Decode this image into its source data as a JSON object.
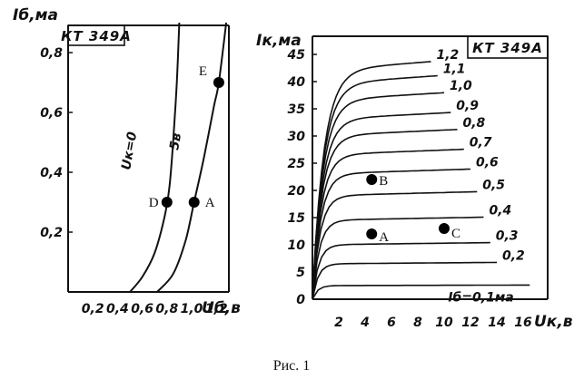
{
  "caption": "Рис. 1",
  "chart_data": [
    {
      "type": "line",
      "name": "input-characteristics",
      "title": "КТ 349А",
      "xlabel": "Uб,в",
      "ylabel": "Iб,ма",
      "xlim": [
        0,
        1.3
      ],
      "ylim": [
        0,
        0.95
      ],
      "x_ticks": [
        "0,2",
        "0,4",
        "0,6",
        "0,8",
        "1,0",
        "1,2"
      ],
      "x_tick_values": [
        0.2,
        0.4,
        0.6,
        0.8,
        1.0,
        1.2
      ],
      "y_ticks": [
        "0,2",
        "0,4",
        "0,6",
        "0,8"
      ],
      "y_tick_values": [
        0.2,
        0.4,
        0.6,
        0.8
      ],
      "series": [
        {
          "name": "Uк=0",
          "points": [
            [
              0.5,
              0
            ],
            [
              0.6,
              0.05
            ],
            [
              0.7,
              0.13
            ],
            [
              0.78,
              0.25
            ],
            [
              0.82,
              0.35
            ],
            [
              0.85,
              0.5
            ],
            [
              0.88,
              0.7
            ],
            [
              0.9,
              0.9
            ]
          ]
        },
        {
          "name": "5в",
          "points": [
            [
              0.72,
              0
            ],
            [
              0.85,
              0.06
            ],
            [
              0.95,
              0.17
            ],
            [
              1.02,
              0.3
            ],
            [
              1.1,
              0.45
            ],
            [
              1.18,
              0.62
            ],
            [
              1.22,
              0.7
            ],
            [
              1.28,
              0.9
            ]
          ]
        }
      ],
      "points": [
        {
          "label": "D",
          "x": 0.8,
          "y": 0.3
        },
        {
          "label": "A",
          "x": 1.02,
          "y": 0.3
        },
        {
          "label": "E",
          "x": 1.22,
          "y": 0.7
        }
      ]
    },
    {
      "type": "line",
      "name": "output-characteristics",
      "title": "КТ 349А",
      "xlabel": "Uк,в",
      "ylabel": "Iк,ма",
      "xlim": [
        0,
        18
      ],
      "ylim": [
        0,
        46
      ],
      "x_ticks": [
        "2",
        "4",
        "6",
        "8",
        "10",
        "12",
        "14",
        "16"
      ],
      "x_tick_values": [
        2,
        4,
        6,
        8,
        10,
        12,
        14,
        16
      ],
      "y_ticks": [
        "0",
        "5",
        "10",
        "15",
        "20",
        "25",
        "30",
        "35",
        "40",
        "45"
      ],
      "y_tick_values": [
        0,
        5,
        10,
        15,
        20,
        25,
        30,
        35,
        40,
        45
      ],
      "series": [
        {
          "name": "Iб=0,1ма",
          "ib": 0.1,
          "plateau": 2.5,
          "end": 16.5,
          "text": "Iб=0,1ма"
        },
        {
          "name": "0,2",
          "ib": 0.2,
          "plateau": 6.5,
          "end": 14,
          "text": "0,2"
        },
        {
          "name": "0,3",
          "ib": 0.3,
          "plateau": 10,
          "end": 13.5,
          "text": "0,3"
        },
        {
          "name": "0,4",
          "ib": 0.4,
          "plateau": 14.5,
          "end": 13,
          "text": "0,4"
        },
        {
          "name": "0,5",
          "ib": 0.5,
          "plateau": 19,
          "end": 12.5,
          "text": "0,5"
        },
        {
          "name": "0,6",
          "ib": 0.6,
          "plateau": 23,
          "end": 12,
          "text": "0,6"
        },
        {
          "name": "0,7",
          "ib": 0.7,
          "plateau": 26.5,
          "end": 11.5,
          "text": "0,7"
        },
        {
          "name": "0,8",
          "ib": 0.8,
          "plateau": 30,
          "end": 11,
          "text": "0,8"
        },
        {
          "name": "0,9",
          "ib": 0.9,
          "plateau": 33,
          "end": 10.5,
          "text": "0,9"
        },
        {
          "name": "1,0",
          "ib": 1.0,
          "plateau": 36.5,
          "end": 10,
          "text": "1,0"
        },
        {
          "name": "1,1",
          "ib": 1.1,
          "plateau": 39.5,
          "end": 9.5,
          "text": "1,1"
        },
        {
          "name": "1,2",
          "ib": 1.2,
          "plateau": 42,
          "end": 9,
          "text": "1,2"
        }
      ],
      "points": [
        {
          "label": "B",
          "x": 4.5,
          "y": 22
        },
        {
          "label": "A",
          "x": 4.5,
          "y": 12
        },
        {
          "label": "C",
          "x": 10,
          "y": 13
        }
      ]
    }
  ]
}
